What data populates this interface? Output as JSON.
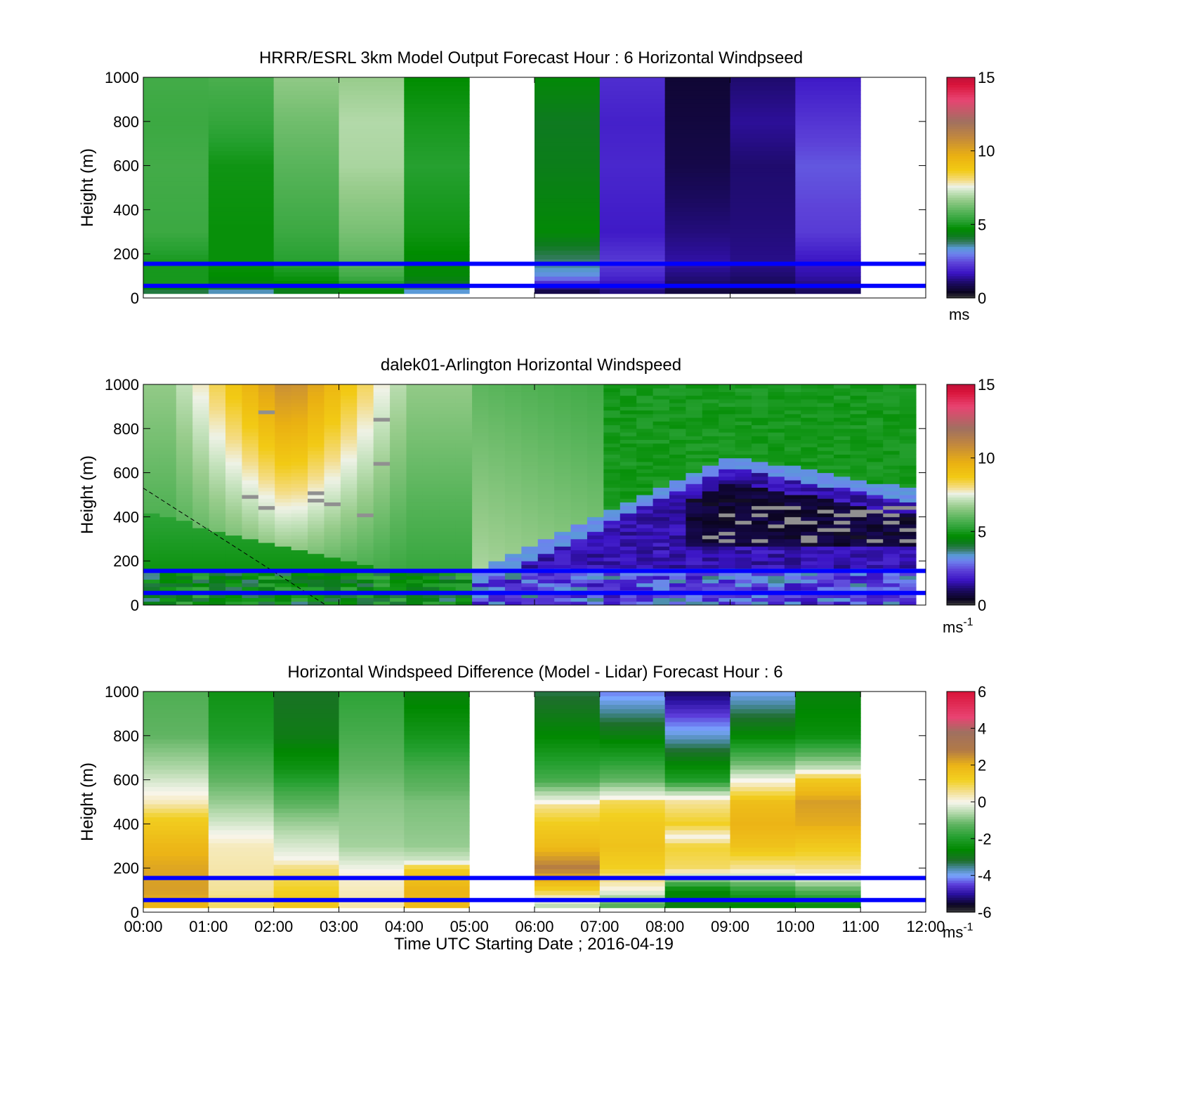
{
  "chart_data": [
    {
      "type": "heatmap",
      "title": "HRRR/ESRL 3km Model Output   Forecast Hour : 6 Horizontal Windpseed",
      "xlabel": "",
      "ylabel": "Height (m)",
      "xlim": [
        0,
        12
      ],
      "ylim": [
        0,
        1000
      ],
      "y_ticks": [
        "0",
        "200",
        "400",
        "600",
        "800",
        "1000"
      ],
      "x_tick_values": [
        0,
        3,
        6,
        9,
        12
      ],
      "colorbar": {
        "min": 0,
        "max": 15,
        "ticks": [
          "0",
          "5",
          "10",
          "15"
        ],
        "unit": "ms",
        "unit_exp": "",
        "palette": "speed"
      },
      "reference_lines_m": [
        55,
        155
      ],
      "reference_line_color": "#0000ff",
      "hour_columns": [
        {
          "start_hour": 0,
          "heights_m": [
            40,
            55,
            100,
            160,
            300,
            600,
            800,
            1000
          ],
          "values": [
            4.0,
            5.0,
            5.0,
            5.0,
            5.5,
            5.6,
            5.5,
            5.6
          ]
        },
        {
          "start_hour": 1,
          "heights_m": [
            40,
            55,
            100,
            160,
            300,
            600,
            800,
            1000
          ],
          "values": [
            3.5,
            4.4,
            4.7,
            4.8,
            4.8,
            4.9,
            5.4,
            5.7
          ]
        },
        {
          "start_hour": 2,
          "heights_m": [
            40,
            55,
            100,
            160,
            300,
            600,
            800,
            1000
          ],
          "values": [
            4.3,
            4.6,
            4.9,
            5.2,
            5.5,
            5.9,
            6.2,
            6.6
          ]
        },
        {
          "start_hour": 3,
          "heights_m": [
            40,
            55,
            100,
            160,
            300,
            600,
            800,
            1000
          ],
          "values": [
            4.6,
            5.0,
            5.6,
            5.9,
            6.3,
            6.9,
            7.0,
            6.7
          ]
        },
        {
          "start_hour": 4,
          "heights_m": [
            40,
            55,
            100,
            160,
            300,
            600,
            800,
            1000
          ],
          "values": [
            3.4,
            4.0,
            4.6,
            4.6,
            4.9,
            5.2,
            5.0,
            4.7
          ]
        },
        {
          "start_hour": 6,
          "heights_m": [
            40,
            55,
            100,
            160,
            300,
            600,
            800,
            1000
          ],
          "values": [
            0.8,
            1.6,
            3.2,
            3.7,
            4.6,
            4.3,
            4.2,
            4.6
          ]
        },
        {
          "start_hour": 7,
          "heights_m": [
            40,
            55,
            100,
            160,
            300,
            600,
            800,
            1000
          ],
          "values": [
            1.2,
            1.6,
            2.0,
            2.3,
            1.8,
            2.0,
            1.9,
            2.1
          ]
        },
        {
          "start_hour": 8,
          "heights_m": [
            40,
            55,
            100,
            160,
            300,
            600,
            800,
            1000
          ],
          "values": [
            0.7,
            1.0,
            1.2,
            1.5,
            1.2,
            0.8,
            0.7,
            0.6
          ]
        },
        {
          "start_hour": 9,
          "heights_m": [
            40,
            55,
            100,
            160,
            300,
            600,
            800,
            1000
          ],
          "values": [
            0.6,
            0.9,
            1.1,
            1.3,
            1.2,
            1.1,
            1.4,
            1.1
          ]
        },
        {
          "start_hour": 10,
          "heights_m": [
            40,
            55,
            100,
            160,
            300,
            600,
            800,
            1000
          ],
          "values": [
            1.0,
            1.2,
            1.5,
            1.7,
            2.3,
            2.6,
            2.2,
            1.8
          ]
        }
      ]
    },
    {
      "type": "heatmap",
      "title": "dalek01-Arlington  Horizontal Windspeed",
      "xlabel": "",
      "ylabel": "Height (m)",
      "xlim": [
        0,
        12
      ],
      "ylim": [
        0,
        1000
      ],
      "y_ticks": [
        "0",
        "200",
        "400",
        "600",
        "800",
        "1000"
      ],
      "x_tick_values": [
        0,
        3,
        6,
        9,
        12
      ],
      "colorbar": {
        "min": 0,
        "max": 15,
        "ticks": [
          "0",
          "5",
          "10",
          "15"
        ],
        "unit": "ms",
        "unit_exp": "-1",
        "palette": "speed"
      },
      "reference_lines_m": [
        55,
        155
      ],
      "reference_line_color": "#0000ff",
      "dashed_line": {
        "from": [
          0,
          530
        ],
        "to": [
          2.8,
          0
        ]
      },
      "data_end_hour": 11.85,
      "low_speed_band": {
        "start_hour": 5.0,
        "base_m": 100,
        "peak_m": 640,
        "peak_hour": 9.0
      },
      "high_speed_region": {
        "start_hour": 1.3,
        "end_hour": 3.2,
        "peak_value": 9.5,
        "top_m": 1000
      },
      "missing_value_color": "#909090"
    },
    {
      "type": "heatmap",
      "title": "Horizontal Windspeed Difference (Model - Lidar) Forecast Hour : 6",
      "xlabel": "Time UTC  Starting Date ; 2016-04-19",
      "ylabel": "Height (m)",
      "xlim": [
        0,
        12
      ],
      "ylim": [
        0,
        1000
      ],
      "y_ticks": [
        "0",
        "200",
        "400",
        "600",
        "800",
        "1000"
      ],
      "x_ticks": [
        "00:00",
        "01:00",
        "02:00",
        "03:00",
        "04:00",
        "05:00",
        "06:00",
        "07:00",
        "08:00",
        "09:00",
        "10:00",
        "11:00",
        "12:00"
      ],
      "colorbar": {
        "min": -6,
        "max": 6,
        "ticks": [
          "-6",
          "-4",
          "-2",
          "0",
          "2",
          "4",
          "6"
        ],
        "unit": "ms",
        "unit_exp": "-1",
        "palette": "diff"
      },
      "reference_lines_m": [
        55,
        155
      ],
      "reference_line_color": "#0000ff",
      "hour_columns": [
        {
          "start_hour": 0,
          "heights_m": [
            40,
            100,
            200,
            300,
            420,
            500,
            560,
            650,
            800,
            1000
          ],
          "values": [
            2.0,
            2.3,
            2.2,
            1.9,
            1.3,
            0.3,
            -0.1,
            -0.6,
            -1.2,
            -1.4
          ]
        },
        {
          "start_hour": 1,
          "heights_m": [
            40,
            100,
            200,
            300,
            350,
            420,
            500,
            650,
            800,
            1000
          ],
          "values": [
            0.8,
            0.5,
            0.4,
            0.3,
            0.0,
            -0.4,
            -0.8,
            -1.4,
            -2.0,
            -2.3
          ]
        },
        {
          "start_hour": 2,
          "heights_m": [
            40,
            100,
            200,
            240,
            350,
            450,
            550,
            650,
            800,
            1000
          ],
          "values": [
            1.5,
            1.2,
            0.7,
            0.0,
            -0.5,
            -1.0,
            -1.6,
            -2.3,
            -2.9,
            -3.1
          ]
        },
        {
          "start_hour": 3,
          "heights_m": [
            40,
            100,
            150,
            190,
            300,
            400,
            500,
            650,
            800,
            1000
          ],
          "values": [
            0.4,
            0.3,
            0.2,
            0.0,
            -0.7,
            -0.8,
            -0.9,
            -1.2,
            -1.5,
            -1.8
          ]
        },
        {
          "start_hour": 4,
          "heights_m": [
            40,
            100,
            200,
            230,
            300,
            400,
            500,
            650,
            800,
            1000
          ],
          "values": [
            1.8,
            2.0,
            1.3,
            -0.3,
            -0.8,
            -0.9,
            -1.0,
            -1.5,
            -2.2,
            -2.8
          ]
        },
        {
          "start_hour": 6,
          "heights_m": [
            40,
            100,
            200,
            300,
            400,
            480,
            500,
            600,
            800,
            1000
          ],
          "values": [
            -0.5,
            1.2,
            2.8,
            1.8,
            1.3,
            0.6,
            0.0,
            -1.5,
            -2.6,
            -3.3
          ]
        },
        {
          "start_hour": 7,
          "heights_m": [
            40,
            100,
            200,
            300,
            400,
            500,
            520,
            600,
            800,
            1000
          ],
          "values": [
            -1.3,
            0.0,
            1.2,
            1.6,
            1.4,
            0.9,
            0.0,
            -1.2,
            -2.8,
            -4.2
          ]
        },
        {
          "start_hour": 8,
          "heights_m": [
            40,
            100,
            200,
            300,
            340,
            400,
            500,
            600,
            800,
            1000
          ],
          "values": [
            -2.8,
            -2.6,
            0.8,
            1.1,
            0.0,
            1.2,
            0.5,
            -2.0,
            -3.8,
            -5.3
          ]
        },
        {
          "start_hour": 9,
          "heights_m": [
            40,
            100,
            200,
            300,
            400,
            500,
            560,
            650,
            800,
            1000
          ],
          "values": [
            -2.6,
            -1.9,
            0.5,
            1.6,
            2.0,
            1.7,
            0.6,
            -0.8,
            -2.6,
            -4.0
          ]
        },
        {
          "start_hour": 10,
          "heights_m": [
            40,
            100,
            200,
            300,
            400,
            500,
            600,
            650,
            800,
            1000
          ],
          "values": [
            -2.4,
            -1.3,
            0.6,
            1.4,
            2.1,
            2.3,
            1.4,
            -0.4,
            -2.4,
            -2.8
          ]
        }
      ]
    }
  ]
}
